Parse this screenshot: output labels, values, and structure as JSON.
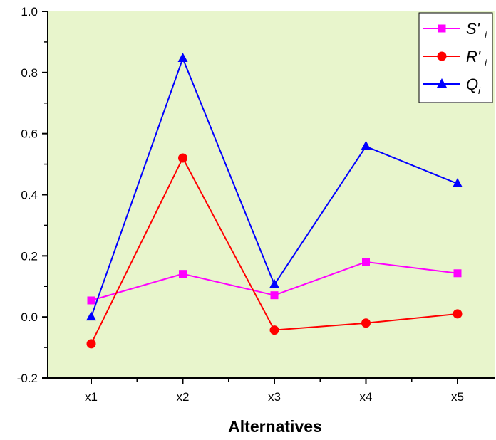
{
  "chart_data": {
    "type": "line",
    "title": "",
    "xlabel": "Alternatives",
    "ylabel": "",
    "categories": [
      "x1",
      "x2",
      "x3",
      "x4",
      "x5"
    ],
    "ylim": [
      -0.2,
      1.0
    ],
    "yticks": [
      -0.2,
      0.0,
      0.2,
      0.4,
      0.6,
      0.8,
      1.0
    ],
    "ytick_labels": [
      "-0.2",
      "0.0",
      "0.2",
      "0.4",
      "0.6",
      "0.8",
      "1.0"
    ],
    "grid": false,
    "plot_background": "#e8f5cc",
    "legend_position": "top-right",
    "series": [
      {
        "name": "S'",
        "subscript": "i",
        "color": "#ff00ff",
        "marker": "square",
        "values": [
          0.054,
          0.141,
          0.071,
          0.18,
          0.143
        ]
      },
      {
        "name": "R'",
        "subscript": "i",
        "color": "#ff0000",
        "marker": "circle",
        "values": [
          -0.088,
          0.52,
          -0.043,
          -0.02,
          0.01
        ]
      },
      {
        "name": "Q",
        "subscript": "i",
        "color": "#0000ff",
        "marker": "triangle",
        "values": [
          0.0,
          0.846,
          0.106,
          0.558,
          0.436
        ]
      }
    ]
  }
}
